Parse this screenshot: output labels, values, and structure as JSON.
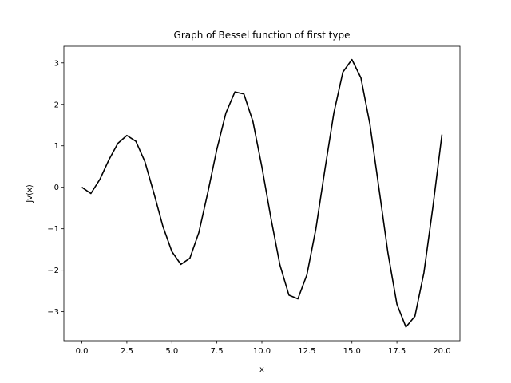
{
  "chart_data": {
    "type": "line",
    "title": "Graph of Bessel function of first type",
    "xlabel": "x",
    "ylabel": "Jv(x)",
    "xlim": [
      -1.0,
      21.0
    ],
    "ylim": [
      -3.7,
      3.4
    ],
    "xticks": [
      0.0,
      2.5,
      5.0,
      7.5,
      10.0,
      12.5,
      15.0,
      17.5,
      20.0
    ],
    "xtick_labels": [
      "0.0",
      "2.5",
      "5.0",
      "7.5",
      "10.0",
      "12.5",
      "15.0",
      "17.5",
      "20.0"
    ],
    "yticks": [
      -3,
      -2,
      -1,
      0,
      1,
      2,
      3
    ],
    "ytick_labels": [
      "−3",
      "−2",
      "−1",
      "0",
      "1",
      "2",
      "3"
    ],
    "grid": false,
    "line_color": "#000000",
    "series": [
      {
        "x": [
          0.0,
          0.5,
          1.0,
          1.5,
          2.0,
          2.5,
          3.0,
          3.5,
          4.0,
          4.5,
          5.0,
          5.5,
          6.0,
          6.5,
          7.0,
          7.5,
          8.0,
          8.5,
          9.0,
          9.5,
          10.0,
          10.5,
          11.0,
          11.5,
          12.0,
          12.5,
          13.0,
          13.5,
          14.0,
          14.5,
          15.0,
          15.5,
          16.0,
          16.5,
          17.0,
          17.5,
          18.0,
          18.5,
          19.0,
          19.5,
          20.0
        ],
        "y": [
          0.0,
          -0.15,
          0.19,
          0.66,
          1.06,
          1.25,
          1.11,
          0.62,
          -0.14,
          -0.94,
          -1.55,
          -1.86,
          -1.71,
          -1.09,
          -0.12,
          0.92,
          1.79,
          2.3,
          2.25,
          1.59,
          0.49,
          -0.74,
          -1.87,
          -2.6,
          -2.69,
          -2.11,
          -1.0,
          0.43,
          1.8,
          2.78,
          3.08,
          2.64,
          1.52,
          -0.02,
          -1.58,
          -2.82,
          -3.37,
          -3.11,
          -2.06,
          -0.47,
          1.27
        ]
      }
    ]
  }
}
